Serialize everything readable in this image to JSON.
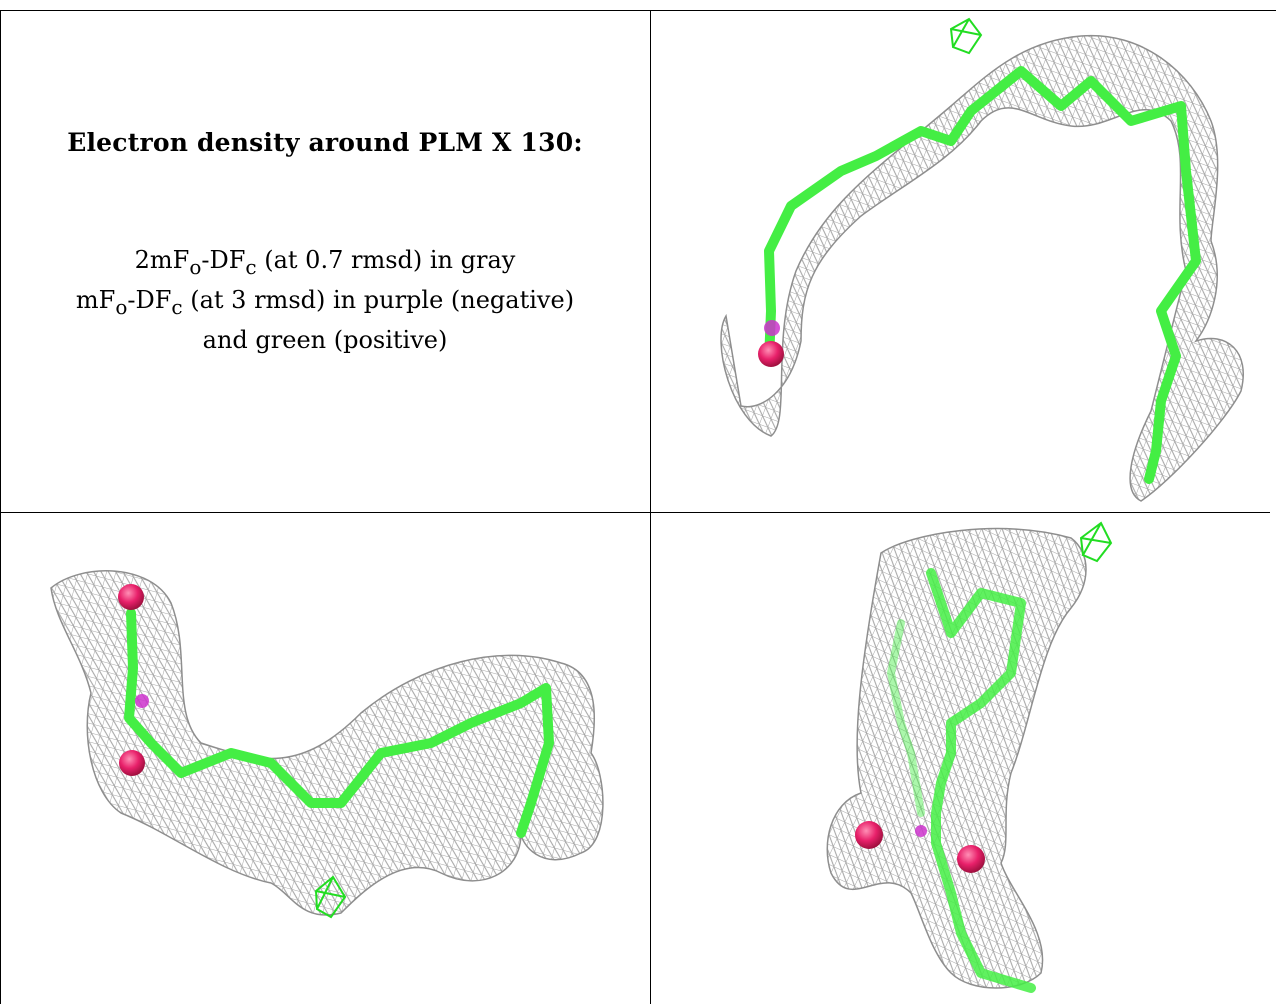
{
  "caption": {
    "title": "Electron density around PLM X 130:",
    "line1_a": "2mF",
    "line1_sub_o": "o",
    "line1_b": "-DF",
    "line1_sub_c": "c",
    "line1_c": " (at 0.7 rmsd) in gray",
    "line2_a": "mF",
    "line2_sub_o": "o",
    "line2_b": "-DF",
    "line2_sub_c": "c",
    "line2_c": " (at 3 rmsd) in purple (negative)",
    "line3": "and green (positive)"
  },
  "colors": {
    "mesh_gray": "#9a9a9a",
    "ligand_green": "#44ee44",
    "oxygen_red": "#e8206a",
    "negative_purple": "#cc33cc",
    "positive_green": "#22dd22"
  }
}
